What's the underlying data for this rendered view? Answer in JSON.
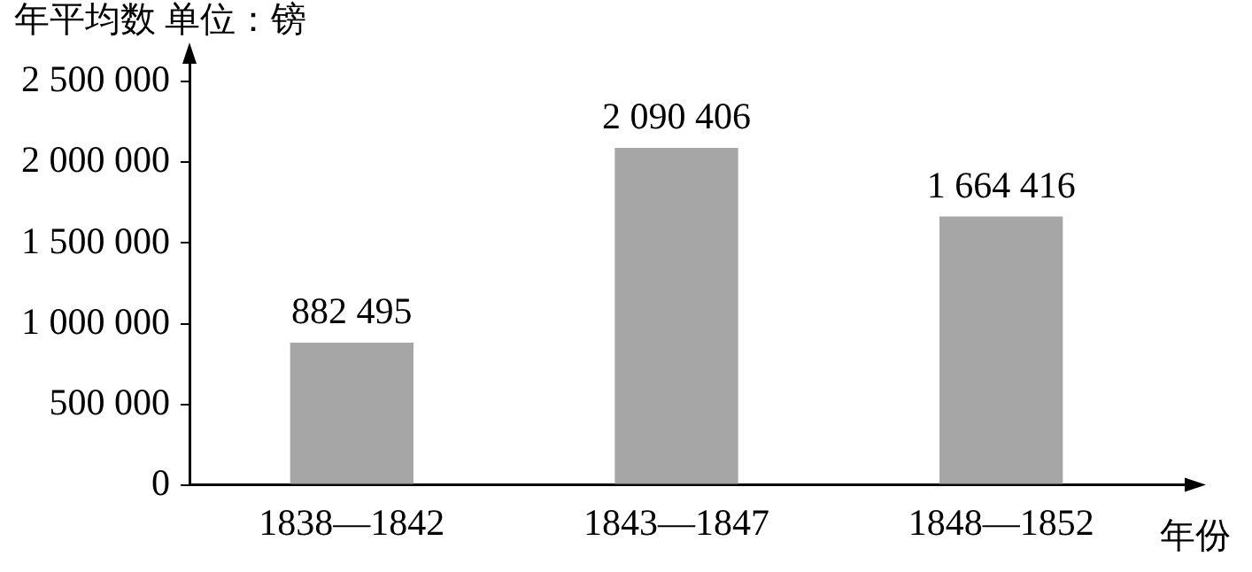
{
  "chart_data": {
    "type": "bar",
    "ylabel": "年平均数 单位：镑",
    "xlabel": "年份",
    "categories": [
      "1838—1842",
      "1843—1847",
      "1848—1852"
    ],
    "values": [
      882495,
      2090406,
      1664416
    ],
    "value_labels": [
      "882 495",
      "2 090 406",
      "1 664 416"
    ],
    "color": "#a6a6a6",
    "ylim": [
      0,
      2700000
    ],
    "yticks": [
      {
        "value": 0,
        "label": "0"
      },
      {
        "value": 500000,
        "label": "500 000"
      },
      {
        "value": 1000000,
        "label": "1 000 000"
      },
      {
        "value": 1500000,
        "label": "1 500 000"
      },
      {
        "value": 2000000,
        "label": "2 000 000"
      },
      {
        "value": 2500000,
        "label": "2 500 000"
      }
    ],
    "grid": false,
    "legend": false
  }
}
